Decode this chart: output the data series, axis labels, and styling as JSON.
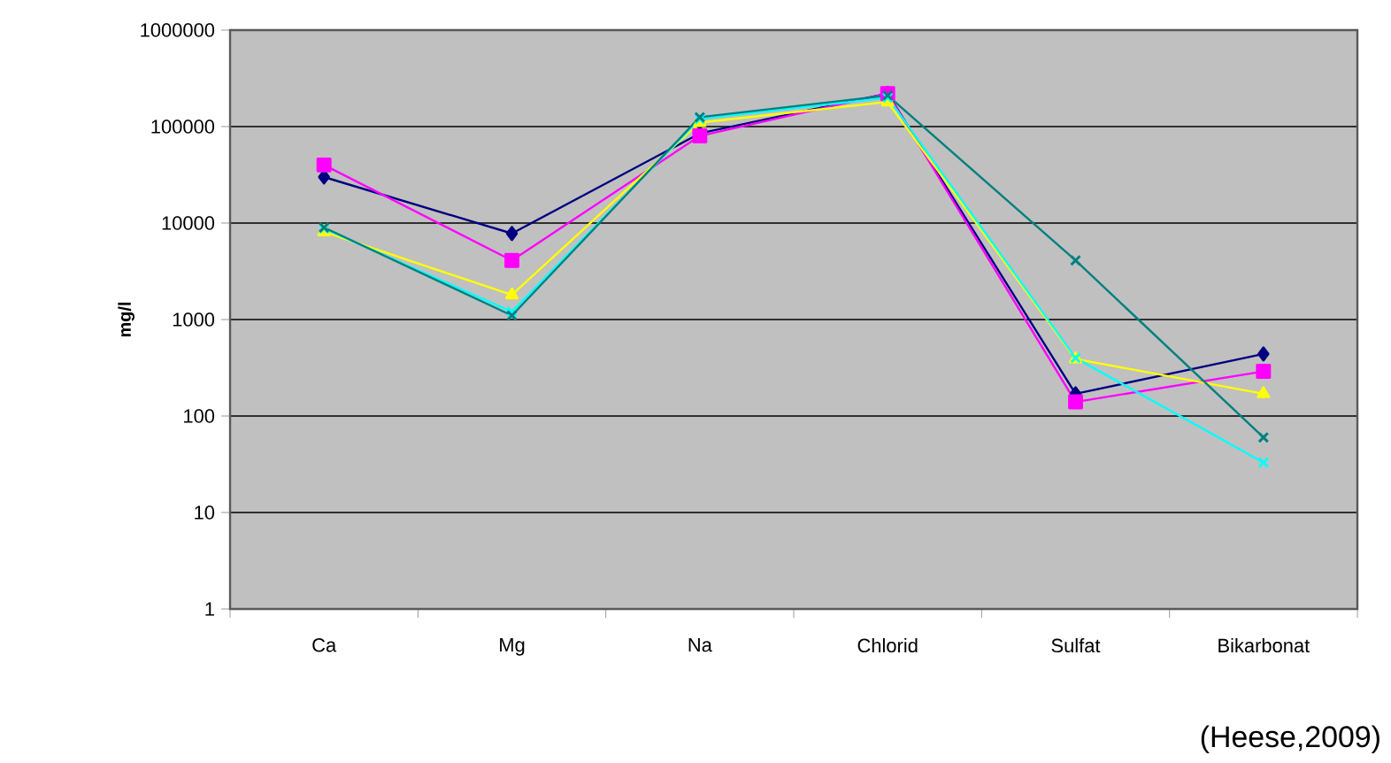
{
  "chart_data": {
    "type": "line",
    "ylabel": "mg/l",
    "log": true,
    "grid": "y",
    "categories": [
      "Ca",
      "Mg",
      "Na",
      "Chlorid",
      "Sulfat",
      "Bikarbonat"
    ],
    "ylim": [
      1,
      1000000
    ],
    "yticks": [
      1,
      10,
      100,
      1000,
      10000,
      100000,
      1000000
    ],
    "series": [
      {
        "color": "#000080",
        "marker": "diamond",
        "values": [
          30000,
          7800,
          85000,
          220000,
          170,
          440
        ]
      },
      {
        "color": "#ff00ff",
        "marker": "square",
        "values": [
          40000,
          4100,
          80000,
          220000,
          140,
          290
        ]
      },
      {
        "color": "#ffff00",
        "marker": "triangle",
        "values": [
          8100,
          1800,
          110000,
          180000,
          390,
          170
        ]
      },
      {
        "color": "#00ffff",
        "marker": "cross",
        "values": [
          8800,
          1200,
          120000,
          200000,
          400,
          33
        ]
      },
      {
        "color": "#008080",
        "marker": "cross",
        "values": [
          9000,
          1100,
          125000,
          210000,
          4100,
          60
        ]
      }
    ],
    "annotations": [
      "(Heese,2009)"
    ]
  }
}
